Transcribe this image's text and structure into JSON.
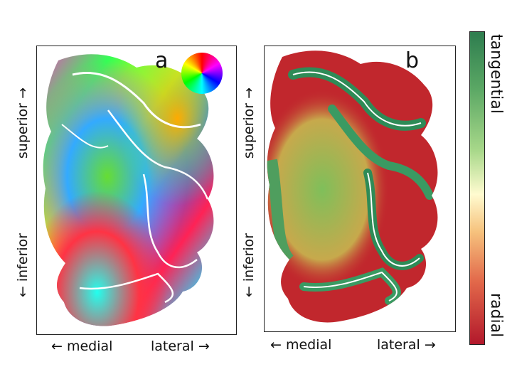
{
  "figure": {
    "panel_a": {
      "letter": "a"
    },
    "panel_b": {
      "letter": "b"
    },
    "axis_labels": {
      "superior": "superior →",
      "inferior": "← inferior",
      "medial": "← medial",
      "lateral": "lateral →"
    },
    "colorbar": {
      "top_label": "tangential",
      "bottom_label": "radial",
      "colors": [
        "#2e8b57",
        "#a8d88a",
        "#fffbd0",
        "#f4a261",
        "#b2182b"
      ]
    },
    "color_wheel": {
      "hues": [
        "#ff0000",
        "#ffff00",
        "#00ff00",
        "#00ffff",
        "#0000ff",
        "#ff00ff",
        "#ff0000"
      ]
    }
  }
}
